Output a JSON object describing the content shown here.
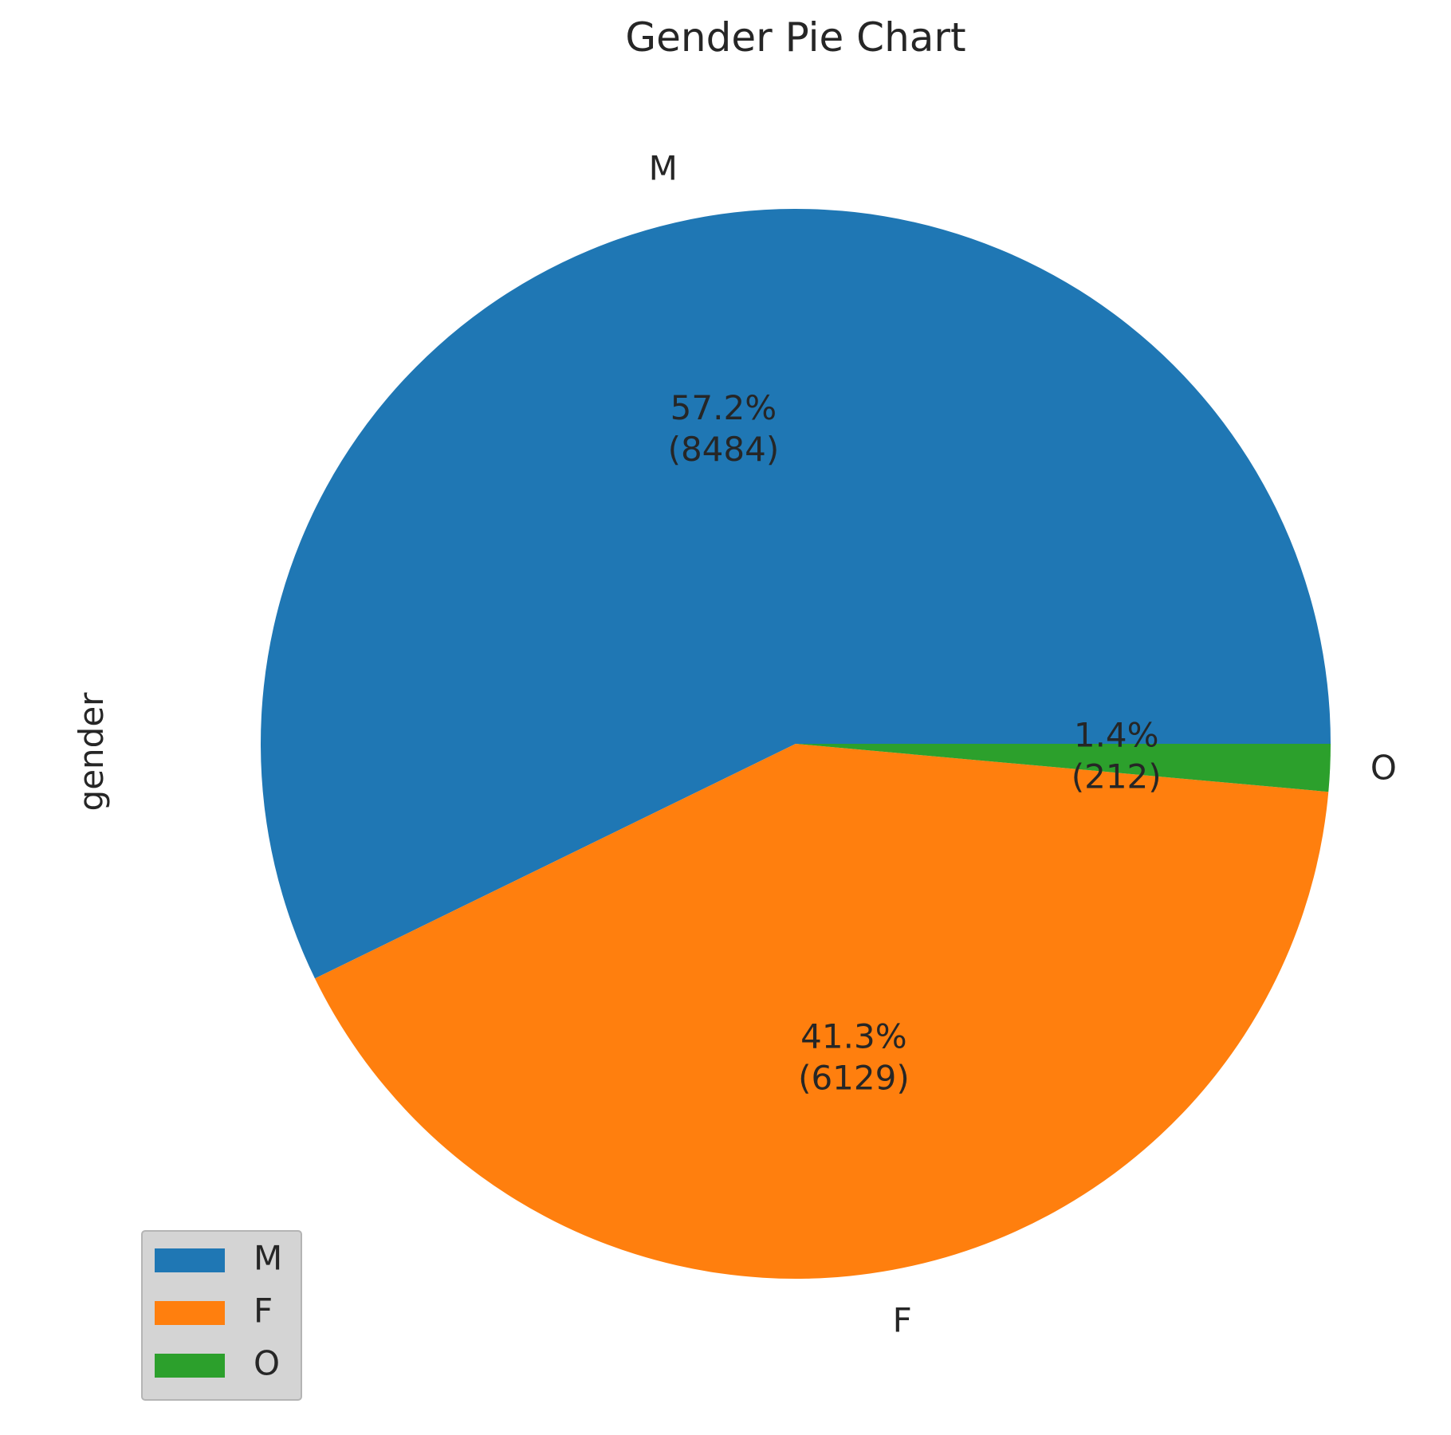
{
  "chart_data": {
    "type": "pie",
    "title": "Gender Pie Chart",
    "ylabel": "gender",
    "categories": [
      "M",
      "F",
      "O"
    ],
    "values": [
      8484,
      6129,
      212
    ],
    "percent_labels": [
      "57.2%",
      "41.3%",
      "1.4%"
    ],
    "count_labels": [
      "(8484)",
      "(6129)",
      "(212)"
    ],
    "colors": [
      "#1f77b4",
      "#ff7f0e",
      "#2ca02c"
    ],
    "start_angle_deg": 0,
    "direction": "counterclockwise",
    "legend": {
      "placement": "lower-left",
      "entries": [
        "M",
        "F",
        "O"
      ]
    }
  }
}
